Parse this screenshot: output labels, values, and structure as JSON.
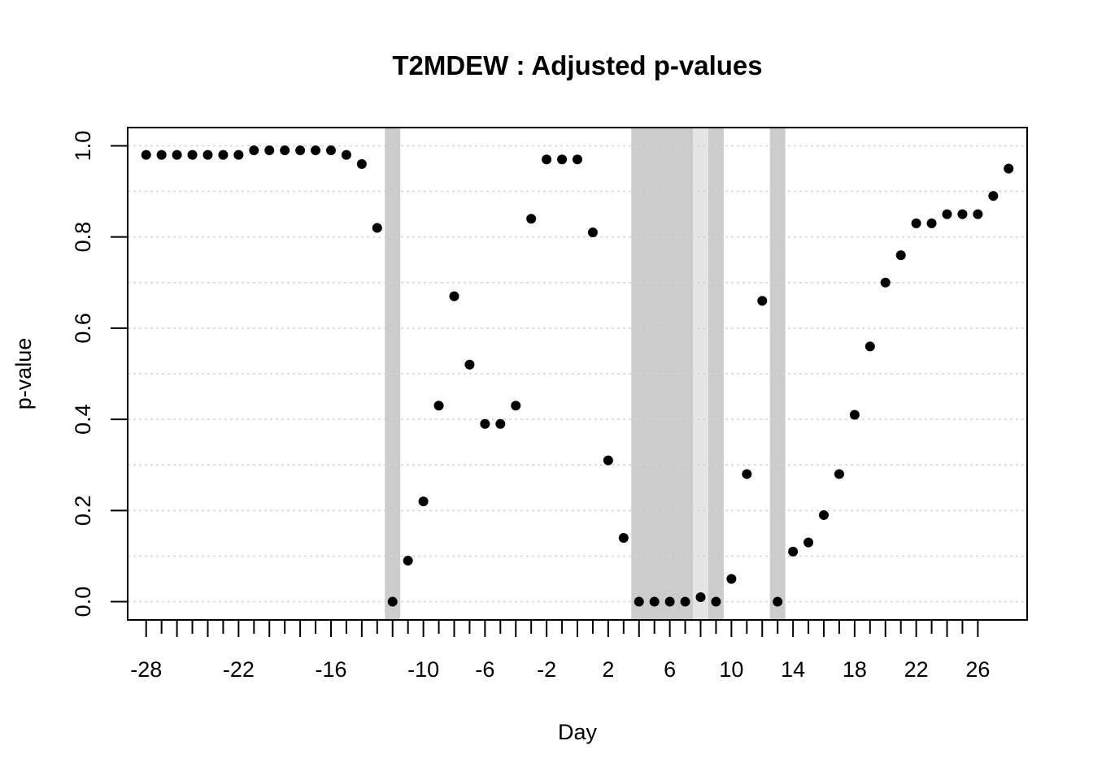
{
  "chart_data": {
    "type": "scatter",
    "title": "T2MDEW : Adjusted p-values",
    "xlabel": "Day",
    "ylabel": "p-value",
    "xlim": [
      -29.2,
      29.2
    ],
    "ylim": [
      -0.04,
      1.04
    ],
    "x_major_ticks": [
      -28,
      -26,
      -24,
      -22,
      -20,
      -18,
      -16,
      -14,
      -12,
      -10,
      -8,
      -6,
      -4,
      -2,
      0,
      2,
      4,
      6,
      8,
      10,
      12,
      14,
      16,
      18,
      20,
      22,
      24,
      26
    ],
    "x_tick_labels": [
      {
        "x": -28,
        "label": "-28"
      },
      {
        "x": -22,
        "label": "-22"
      },
      {
        "x": -16,
        "label": "-16"
      },
      {
        "x": -10,
        "label": "-10"
      },
      {
        "x": -6,
        "label": "-6"
      },
      {
        "x": -2,
        "label": "-2"
      },
      {
        "x": 2,
        "label": "2"
      },
      {
        "x": 6,
        "label": "6"
      },
      {
        "x": 10,
        "label": "10"
      },
      {
        "x": 14,
        "label": "14"
      },
      {
        "x": 18,
        "label": "18"
      },
      {
        "x": 22,
        "label": "22"
      },
      {
        "x": 26,
        "label": "26"
      }
    ],
    "y_ticks": [
      {
        "y": 0.0,
        "label": "0.0"
      },
      {
        "y": 0.2,
        "label": "0.2"
      },
      {
        "y": 0.4,
        "label": "0.4"
      },
      {
        "y": 0.6,
        "label": "0.6"
      },
      {
        "y": 0.8,
        "label": "0.8"
      },
      {
        "y": 1.0,
        "label": "1.0"
      }
    ],
    "y_gridlines": [
      0.0,
      0.1,
      0.2,
      0.3,
      0.4,
      0.5,
      0.6,
      0.7,
      0.8,
      0.9,
      1.0
    ],
    "grid": "horizontal dotted",
    "shaded_bands": [
      {
        "x_start": -12.5,
        "x_end": -11.5,
        "color": "#cccccc"
      },
      {
        "x_start": 3.5,
        "x_end": 7.5,
        "color": "#cccccc"
      },
      {
        "x_start": 7.5,
        "x_end": 8.5,
        "color": "#e5e5e5"
      },
      {
        "x_start": 8.5,
        "x_end": 9.5,
        "color": "#cccccc"
      },
      {
        "x_start": 12.5,
        "x_end": 13.5,
        "color": "#cccccc"
      }
    ],
    "points": [
      {
        "x": -28,
        "y": 0.98
      },
      {
        "x": -27,
        "y": 0.98
      },
      {
        "x": -26,
        "y": 0.98
      },
      {
        "x": -25,
        "y": 0.98
      },
      {
        "x": -24,
        "y": 0.98
      },
      {
        "x": -23,
        "y": 0.98
      },
      {
        "x": -22,
        "y": 0.98
      },
      {
        "x": -21,
        "y": 0.99
      },
      {
        "x": -20,
        "y": 0.99
      },
      {
        "x": -19,
        "y": 0.99
      },
      {
        "x": -18,
        "y": 0.99
      },
      {
        "x": -17,
        "y": 0.99
      },
      {
        "x": -16,
        "y": 0.99
      },
      {
        "x": -15,
        "y": 0.98
      },
      {
        "x": -14,
        "y": 0.96
      },
      {
        "x": -13,
        "y": 0.82
      },
      {
        "x": -12,
        "y": 0.0
      },
      {
        "x": -11,
        "y": 0.09
      },
      {
        "x": -10,
        "y": 0.22
      },
      {
        "x": -9,
        "y": 0.43
      },
      {
        "x": -8,
        "y": 0.67
      },
      {
        "x": -7,
        "y": 0.52
      },
      {
        "x": -6,
        "y": 0.39
      },
      {
        "x": -5,
        "y": 0.39
      },
      {
        "x": -4,
        "y": 0.43
      },
      {
        "x": -3,
        "y": 0.84
      },
      {
        "x": -2,
        "y": 0.97
      },
      {
        "x": -1,
        "y": 0.97
      },
      {
        "x": 0,
        "y": 0.97
      },
      {
        "x": 1,
        "y": 0.81
      },
      {
        "x": 2,
        "y": 0.31
      },
      {
        "x": 3,
        "y": 0.14
      },
      {
        "x": 4,
        "y": 0.0
      },
      {
        "x": 5,
        "y": 0.0
      },
      {
        "x": 6,
        "y": 0.0
      },
      {
        "x": 7,
        "y": 0.0
      },
      {
        "x": 8,
        "y": 0.01
      },
      {
        "x": 9,
        "y": 0.0
      },
      {
        "x": 10,
        "y": 0.05
      },
      {
        "x": 11,
        "y": 0.28
      },
      {
        "x": 12,
        "y": 0.66
      },
      {
        "x": 13,
        "y": 0.0
      },
      {
        "x": 14,
        "y": 0.11
      },
      {
        "x": 15,
        "y": 0.13
      },
      {
        "x": 16,
        "y": 0.19
      },
      {
        "x": 17,
        "y": 0.28
      },
      {
        "x": 18,
        "y": 0.41
      },
      {
        "x": 19,
        "y": 0.56
      },
      {
        "x": 20,
        "y": 0.7
      },
      {
        "x": 21,
        "y": 0.76
      },
      {
        "x": 22,
        "y": 0.83
      },
      {
        "x": 23,
        "y": 0.83
      },
      {
        "x": 24,
        "y": 0.85
      },
      {
        "x": 25,
        "y": 0.85
      },
      {
        "x": 26,
        "y": 0.85
      },
      {
        "x": 27,
        "y": 0.89
      },
      {
        "x": 28,
        "y": 0.95
      }
    ],
    "point_color": "#000000",
    "grid_color": "#d3d3d3"
  }
}
